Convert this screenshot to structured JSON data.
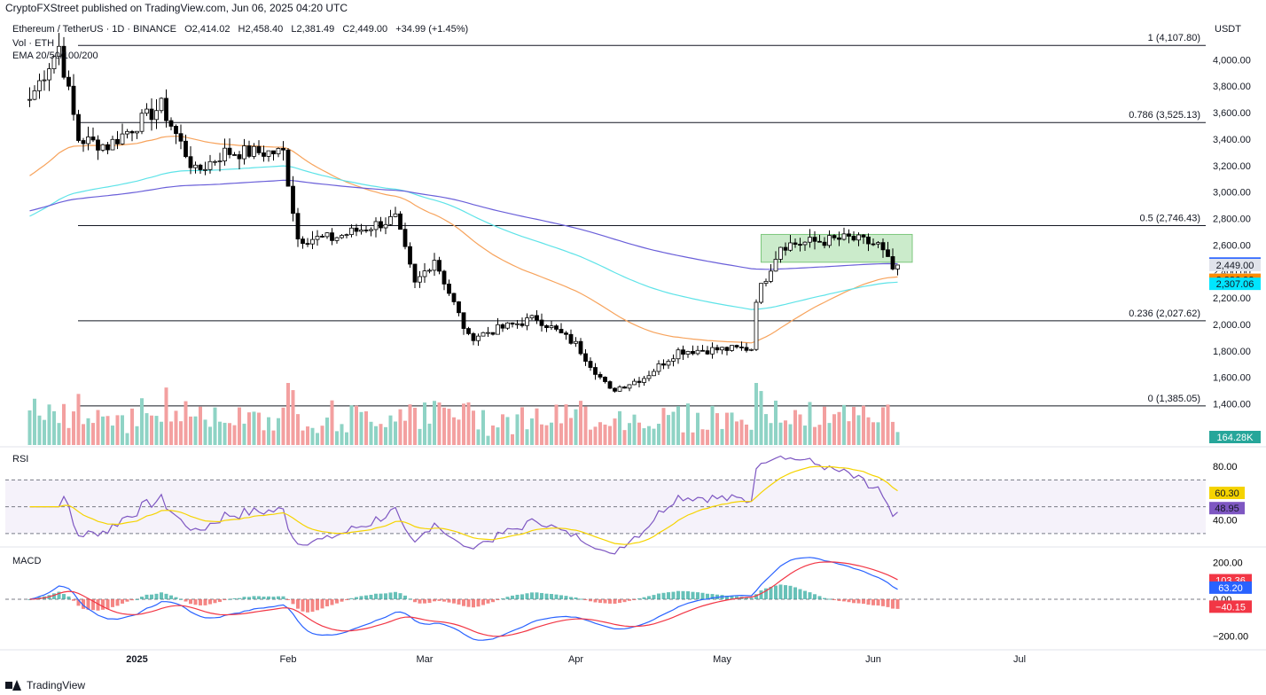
{
  "header": {
    "published": "CryptoFXStreet published on TradingView.com, Jun 06, 2025 04:20 UTC",
    "symbol": "Ethereum / TetherUS · 1D · BINANCE",
    "ohlc": {
      "o": "O2,414.02",
      "h": "H2,458.40",
      "l": "L2,381.49",
      "c": "C2,449.00",
      "chg": "+34.99 (+1.45%)"
    },
    "vol_label": "Vol · ETH",
    "ema_label": "EMA 20/50/100/200",
    "quote": "USDT"
  },
  "footer": {
    "brand": "TradingView"
  },
  "colors": {
    "up": "#ffffff",
    "down": "#000000",
    "vol_up": "#8fd3c5",
    "vol_down": "#f3a0a0",
    "ema50": "#f7a35c",
    "ema100": "#5ee3e8",
    "ema200": "#6a5fd9",
    "rect": "#b9e4b9"
  },
  "chart_data": [
    {
      "type": "candlestick",
      "title": "Ethereum / TetherUS · 1D · BINANCE",
      "ylabel": "USDT",
      "ylim": [
        1250,
        4250
      ],
      "yticks": [
        1400,
        1600,
        1800,
        2000,
        2200,
        2400,
        2600,
        2800,
        3000,
        3200,
        3400,
        3600,
        3800,
        4000
      ],
      "xtick_labels": [
        "2025",
        "Feb",
        "Mar",
        "Apr",
        "May",
        "Jun",
        "Jul"
      ],
      "price_key_points": [
        [
          "2024-12-10",
          3700
        ],
        [
          "2024-12-16",
          4100
        ],
        [
          "2024-12-20",
          3400
        ],
        [
          "2024-12-26",
          3350
        ],
        [
          "2025-01-06",
          3650
        ],
        [
          "2025-01-13",
          3150
        ],
        [
          "2025-01-19",
          3300
        ],
        [
          "2025-01-31",
          3300
        ],
        [
          "2025-02-03",
          2650
        ],
        [
          "2025-02-10",
          2650
        ],
        [
          "2025-02-23",
          2800
        ],
        [
          "2025-02-27",
          2300
        ],
        [
          "2025-03-03",
          2500
        ],
        [
          "2025-03-10",
          1900
        ],
        [
          "2025-03-24",
          2050
        ],
        [
          "2025-04-01",
          1850
        ],
        [
          "2025-04-08",
          1500
        ],
        [
          "2025-04-15",
          1600
        ],
        [
          "2025-04-22",
          1800
        ],
        [
          "2025-05-07",
          1820
        ],
        [
          "2025-05-08",
          2200
        ],
        [
          "2025-05-13",
          2600
        ],
        [
          "2025-05-27",
          2650
        ],
        [
          "2025-06-02",
          2600
        ],
        [
          "2025-06-05",
          2415
        ],
        [
          "2025-06-06",
          2449
        ]
      ],
      "fib_levels": [
        {
          "label": "1 (4,107.80)",
          "value": 4107.8
        },
        {
          "label": "0.786 (3,525.13)",
          "value": 3525.13
        },
        {
          "label": "0.5 (2,746.43)",
          "value": 2746.43
        },
        {
          "label": "0.236 (2,027.62)",
          "value": 2027.62
        },
        {
          "label": "0 (1,385.05)",
          "value": 1385.05
        }
      ],
      "consolidation_box": {
        "from": "2025-05-09",
        "to": "2025-06-09",
        "low": 2470,
        "high": 2680
      },
      "price_tags": [
        {
          "value": 2460.2,
          "label": "2,460.20",
          "bg": "#2962ff",
          "fg": "#ffffff"
        },
        {
          "value": 2449.0,
          "label": "2,449.00",
          "bg": "#e0e3eb",
          "fg": "#131722"
        },
        {
          "value": 2380.0,
          "label": "19:39:13",
          "bg": "#e0e3eb",
          "fg": "#131722"
        },
        {
          "value": 2336.92,
          "label": "2,336.92",
          "bg": "#ff8c00",
          "fg": "#131722"
        },
        {
          "value": 2307.06,
          "label": "2,307.06",
          "bg": "#00e5ff",
          "fg": "#131722"
        }
      ],
      "volume_tag": "164.28K"
    },
    {
      "type": "line",
      "title": "RSI",
      "ylim": [
        22,
        92
      ],
      "yticks": [
        40,
        60,
        80
      ],
      "band": [
        30,
        70
      ],
      "tags": [
        {
          "label": "60.30",
          "value": 60.3,
          "bg": "#f5d300"
        },
        {
          "label": "48.95",
          "value": 48.95,
          "bg": "#7e57c2"
        }
      ]
    },
    {
      "type": "line",
      "title": "MACD",
      "ylim": [
        -260,
        260
      ],
      "yticks": [
        -200,
        0,
        200
      ],
      "ytick_labels": [
        "−200.00",
        "0.00",
        "200.00"
      ],
      "tags": [
        {
          "label": "103.36",
          "value": 103.36,
          "bg": "#f23645"
        },
        {
          "label": "63.20",
          "value": 63.2,
          "bg": "#2962ff"
        },
        {
          "label": "−40.15",
          "value": -40.15,
          "bg": "#f23645"
        }
      ]
    }
  ]
}
